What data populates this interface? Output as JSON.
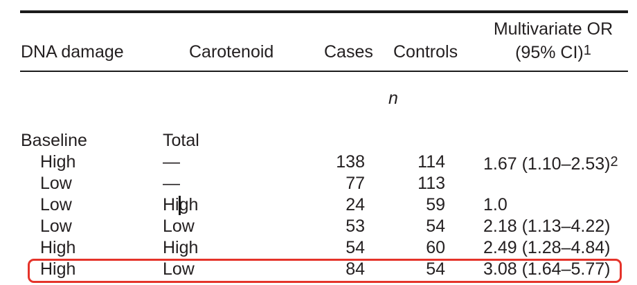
{
  "page": {
    "background": "#ffffff",
    "text_color": "#231f20",
    "rule_color": "#1b1b1b",
    "highlight_color": "#e5332a"
  },
  "table": {
    "columns": [
      {
        "label": "DNA damage"
      },
      {
        "label": "Carotenoid"
      },
      {
        "label": "Cases"
      },
      {
        "label": "Controls"
      },
      {
        "label_line1": "Multivariate OR",
        "label_line2": "(95% CI)",
        "footnote_marker": "1"
      }
    ],
    "subheader": {
      "n_label": "n"
    },
    "rows": [
      {
        "dna": "Baseline",
        "carotenoid": "Total",
        "cases": "",
        "controls": "",
        "or": "",
        "indent": false
      },
      {
        "dna": "High",
        "carotenoid": "—",
        "cases": "138",
        "controls": "114",
        "or": "1.67 (1.10–2.53)",
        "or_footnote_marker": "2",
        "indent": true
      },
      {
        "dna": "Low",
        "carotenoid": "—",
        "cases": "77",
        "controls": "113",
        "or": "",
        "indent": true
      },
      {
        "dna": "Low",
        "carotenoid": "High",
        "cases": "24",
        "controls": "59",
        "or": "1.0",
        "indent": true,
        "text_cursor": true
      },
      {
        "dna": "Low",
        "carotenoid": "Low",
        "cases": "53",
        "controls": "54",
        "or": "2.18 (1.13–4.22)",
        "indent": true
      },
      {
        "dna": "High",
        "carotenoid": "High",
        "cases": "54",
        "controls": "60",
        "or": "2.49 (1.28–4.84)",
        "indent": true
      },
      {
        "dna": "High",
        "carotenoid": "Low",
        "cases": "84",
        "controls": "54",
        "or": "3.08 (1.64–5.77)",
        "indent": true,
        "highlighted": true
      }
    ],
    "annotation": {
      "shape": "red-rounded-rectangle",
      "highlighted_row_index": 6
    }
  }
}
